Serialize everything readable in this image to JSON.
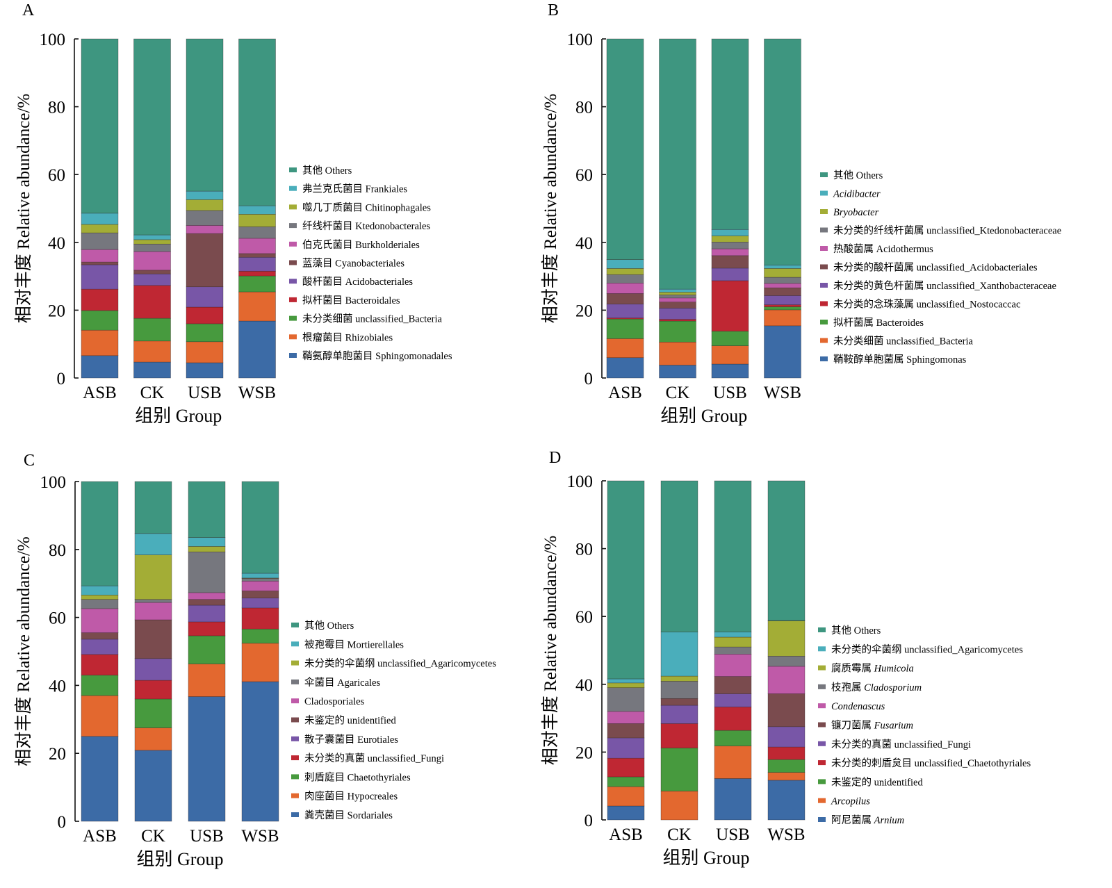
{
  "figure": {
    "panels": [
      "A",
      "B",
      "C",
      "D"
    ]
  },
  "colors": {
    "others": "#3e9680",
    "cyan": "#4aaebb",
    "olive": "#a3ad36",
    "gray": "#76777e",
    "pink": "#bf5aa8",
    "brown": "#7a4b4e",
    "purple": "#7856a7",
    "red": "#bf2733",
    "green": "#479a3e",
    "orange": "#e3682f",
    "blue": "#3c6ba6"
  },
  "chart_data": [
    {
      "panel": "A",
      "type": "bar",
      "stacked": true,
      "title": "",
      "xlabel": "组别 Group",
      "ylabel": "相对丰度 Relative abundance/%",
      "ylim": [
        0,
        100
      ],
      "yticks": [
        0,
        20,
        40,
        60,
        80,
        100
      ],
      "grid": false,
      "legend_position": "right",
      "categories": [
        "ASB",
        "CK",
        "USB",
        "WSB"
      ],
      "series": [
        {
          "name": "鞘氨醇单胞菌目 Sphingomonadales",
          "italic": false,
          "color_key": "blue",
          "values": [
            6.6,
            4.7,
            4.5,
            16.8
          ]
        },
        {
          "name": "根瘤菌目 Rhizobiales",
          "italic": false,
          "color_key": "orange",
          "values": [
            7.5,
            6.2,
            6.2,
            8.6
          ]
        },
        {
          "name": "未分类细菌 unclassified_Bacteria",
          "italic": false,
          "color_key": "green",
          "values": [
            5.8,
            6.7,
            5.3,
            4.7
          ]
        },
        {
          "name": "拟杆菌目 Bacteroidales",
          "italic": false,
          "color_key": "red",
          "values": [
            6.3,
            9.7,
            4.9,
            1.4
          ]
        },
        {
          "name": "酸杆菌目 Acidobacteriales",
          "italic": false,
          "color_key": "purple",
          "values": [
            7.2,
            3.4,
            6.0,
            4.1
          ]
        },
        {
          "name": "蓝藻目 Cyanobacteriales",
          "italic": false,
          "color_key": "brown",
          "values": [
            0.8,
            1.1,
            15.7,
            1.1
          ]
        },
        {
          "name": "伯克氏菌目 Burkholderiales",
          "italic": false,
          "color_key": "pink",
          "values": [
            3.7,
            5.5,
            2.4,
            4.5
          ]
        },
        {
          "name": "纤线杆菌目 Ktedonobacterales",
          "italic": false,
          "color_key": "gray",
          "values": [
            4.9,
            2.2,
            4.4,
            3.4
          ]
        },
        {
          "name": "噬几丁质菌目 Chitinophagales",
          "italic": false,
          "color_key": "olive",
          "values": [
            2.5,
            1.3,
            3.2,
            3.7
          ]
        },
        {
          "name": "弗兰克氏菌目 Frankiales",
          "italic": false,
          "color_key": "cyan",
          "values": [
            3.3,
            1.4,
            2.5,
            2.5
          ]
        },
        {
          "name": "其他 Others",
          "italic": false,
          "color_key": "others",
          "values": [
            51.4,
            57.8,
            44.9,
            49.2
          ]
        }
      ]
    },
    {
      "panel": "B",
      "type": "bar",
      "stacked": true,
      "title": "",
      "xlabel": "组别 Group",
      "ylabel": "相对丰度 Relative abundance/%",
      "ylim": [
        0,
        100
      ],
      "yticks": [
        0,
        20,
        40,
        60,
        80,
        100
      ],
      "grid": false,
      "legend_position": "right",
      "categories": [
        "ASB",
        "CK",
        "USB",
        "WSB"
      ],
      "series": [
        {
          "name": "鞘鞍醇单胞菌属 Sphingomonas",
          "italic": false,
          "color_key": "blue",
          "values": [
            6.0,
            3.8,
            4.1,
            15.4
          ]
        },
        {
          "name": "未分类细菌 unclassified_Bacteria",
          "italic": false,
          "color_key": "orange",
          "values": [
            5.6,
            6.8,
            5.4,
            4.7
          ]
        },
        {
          "name": "拟杆菌属 Bacteroides",
          "italic": false,
          "color_key": "green",
          "values": [
            5.8,
            6.2,
            4.3,
            0.9
          ]
        },
        {
          "name": "未分类的念珠藻属 unclassified_Nostocaccac",
          "italic": false,
          "color_key": "red",
          "values": [
            0.3,
            0.5,
            14.9,
            0.6
          ]
        },
        {
          "name": "未分类的黄色杆菌属 unclassified_Xanthobacteraceae",
          "italic": false,
          "color_key": "purple",
          "values": [
            4.1,
            3.3,
            3.7,
            2.7
          ]
        },
        {
          "name": "未分类的酸杆菌属 unclassified_Acidobacteriales",
          "italic": false,
          "color_key": "brown",
          "values": [
            3.1,
            1.8,
            3.7,
            2.3
          ]
        },
        {
          "name": "热酸菌属 Acidothermus",
          "italic": false,
          "color_key": "pink",
          "values": [
            3.1,
            1.2,
            2.0,
            1.3
          ]
        },
        {
          "name": "未分类的纤线杆菌属 unclassified_Ktedonobacteraceae",
          "italic": false,
          "color_key": "gray",
          "values": [
            2.5,
            0.9,
            2.0,
            1.8
          ]
        },
        {
          "name": "Bryobacter",
          "italic": true,
          "color_key": "olive",
          "values": [
            1.8,
            0.8,
            1.8,
            2.6
          ]
        },
        {
          "name": "Acidibacter",
          "italic": true,
          "color_key": "cyan",
          "values": [
            2.6,
            0.9,
            1.9,
            1.0
          ]
        },
        {
          "name": "其他 Others",
          "italic": false,
          "color_key": "others",
          "values": [
            65.1,
            73.8,
            56.2,
            66.7
          ]
        }
      ]
    },
    {
      "panel": "C",
      "type": "bar",
      "stacked": true,
      "title": "",
      "xlabel": "组别 Group",
      "ylabel": "相对丰度 Relative abundance/%",
      "ylim": [
        0,
        100
      ],
      "yticks": [
        0,
        20,
        40,
        60,
        80,
        100
      ],
      "grid": false,
      "legend_position": "right",
      "categories": [
        "ASB",
        "CK",
        "USB",
        "WSB"
      ],
      "series": [
        {
          "name": "粪壳菌目 Sordariales",
          "italic": false,
          "color_key": "blue",
          "values": [
            25.0,
            20.9,
            36.7,
            41.1
          ]
        },
        {
          "name": "肉座菌目 Hypocreales",
          "italic": false,
          "color_key": "orange",
          "values": [
            12.0,
            6.6,
            9.6,
            11.3
          ]
        },
        {
          "name": "刺盾庭目 Chaetothyriales",
          "italic": false,
          "color_key": "green",
          "values": [
            6.0,
            8.5,
            8.3,
            4.2
          ]
        },
        {
          "name": "未分类的真菌 unclassified_Fungi",
          "italic": false,
          "color_key": "red",
          "values": [
            6.1,
            5.5,
            4.1,
            6.2
          ]
        },
        {
          "name": "散子囊菌目 Eurotiales",
          "italic": false,
          "color_key": "purple",
          "values": [
            4.5,
            6.4,
            4.9,
            2.9
          ]
        },
        {
          "name": "未鉴定的 unidentified",
          "italic": false,
          "color_key": "brown",
          "values": [
            1.9,
            11.4,
            1.7,
            2.1
          ]
        },
        {
          "name": "Cladosporiales",
          "italic": false,
          "color_key": "pink",
          "values": [
            7.1,
            5.1,
            2.0,
            2.9
          ]
        },
        {
          "name": "伞菌目 Agaricales",
          "italic": false,
          "color_key": "gray",
          "values": [
            2.7,
            0.9,
            12.0,
            0.8
          ]
        },
        {
          "name": "未分类的伞菌纲 unclassified_Agaricomycetes",
          "italic": false,
          "color_key": "olive",
          "values": [
            1.3,
            13.1,
            1.6,
            0.1
          ]
        },
        {
          "name": "被孢霉目 Mortierellales",
          "italic": false,
          "color_key": "cyan",
          "values": [
            2.7,
            6.3,
            2.6,
            1.4
          ]
        },
        {
          "name": "其他 Others",
          "italic": false,
          "color_key": "others",
          "values": [
            30.7,
            15.3,
            16.5,
            27.0
          ]
        }
      ]
    },
    {
      "panel": "D",
      "type": "bar",
      "stacked": true,
      "title": "",
      "xlabel": "组别 Group",
      "ylabel": "相对丰度 Relative abundance/%",
      "ylim": [
        0,
        100
      ],
      "yticks": [
        0,
        20,
        40,
        60,
        80,
        100
      ],
      "grid": false,
      "legend_position": "right",
      "categories": [
        "ASB",
        "CK",
        "USB",
        "WSB"
      ],
      "series": [
        {
          "name": "阿尼菌属 Arnium",
          "zh": "阿尼菌属 ",
          "latin": "Arnium",
          "italic": true,
          "color_key": "blue",
          "values": [
            4.1,
            0.0,
            12.2,
            11.7
          ]
        },
        {
          "name": "Arcopilus",
          "zh": "",
          "latin": "Arcopilus",
          "italic": true,
          "color_key": "orange",
          "values": [
            5.7,
            8.5,
            9.6,
            2.3
          ]
        },
        {
          "name": "未鉴定的 unidentified",
          "italic": false,
          "color_key": "green",
          "values": [
            2.9,
            12.7,
            4.6,
            3.8
          ]
        },
        {
          "name": "未分类的刺盾炱目 unclassified_Chaetothyriales",
          "italic": false,
          "color_key": "red",
          "values": [
            5.5,
            7.2,
            6.9,
            3.7
          ]
        },
        {
          "name": "未分类的真菌 unclassified_Fungi",
          "italic": false,
          "color_key": "purple",
          "values": [
            6.0,
            5.4,
            3.9,
            6.0
          ]
        },
        {
          "name": "镰刀菌属 Fusarium",
          "zh": "镰刀菌属 ",
          "latin": "Fusarium",
          "italic": true,
          "color_key": "brown",
          "values": [
            4.2,
            2.0,
            5.1,
            9.7
          ]
        },
        {
          "name": "Condenascus",
          "zh": "",
          "latin": "Condenascus",
          "italic": true,
          "color_key": "pink",
          "values": [
            3.6,
            0.0,
            6.6,
            8.1
          ]
        },
        {
          "name": "枝孢属 Cladosporium",
          "zh": "枝孢属 ",
          "latin": "Cladosporium",
          "italic": true,
          "color_key": "gray",
          "values": [
            7.0,
            5.1,
            2.1,
            3.0
          ]
        },
        {
          "name": "腐质霉属 Humicola",
          "zh": "腐质霉属 ",
          "latin": "Humicola",
          "italic": true,
          "color_key": "olive",
          "values": [
            1.4,
            1.5,
            2.9,
            10.4
          ]
        },
        {
          "name": "未分类的伞菌纲 unclassified_Agaricomycetes",
          "italic": false,
          "color_key": "cyan",
          "values": [
            1.2,
            13.0,
            1.5,
            0.1
          ]
        },
        {
          "name": "其他 Others",
          "italic": false,
          "color_key": "others",
          "values": [
            58.4,
            44.6,
            44.6,
            41.2
          ]
        }
      ]
    }
  ]
}
